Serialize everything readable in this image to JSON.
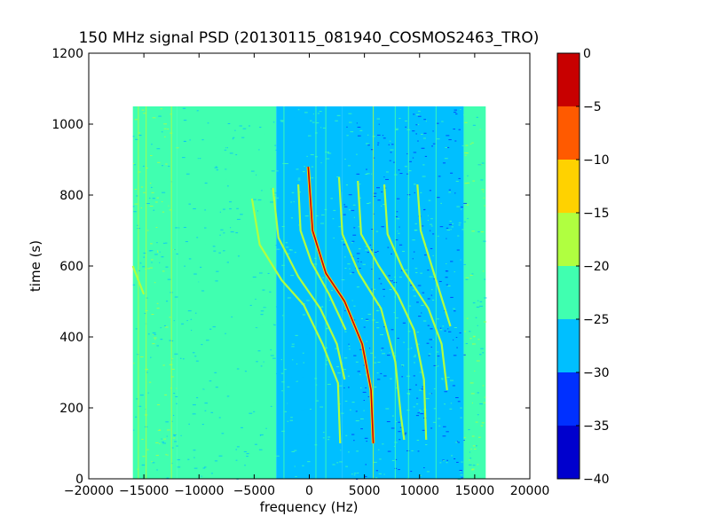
{
  "chart_data": {
    "type": "heatmap",
    "title": "150 MHz signal PSD (20130115_081940_COSMOS2463_TRO)",
    "xlabel": "frequency (Hz)",
    "ylabel": "time (s)",
    "xlim": [
      -20000,
      20000
    ],
    "ylim": [
      0,
      1200
    ],
    "xticks": [
      -20000,
      -15000,
      -10000,
      -5000,
      0,
      5000,
      10000,
      15000,
      20000
    ],
    "xtick_labels": [
      "−20000",
      "−15000",
      "−10000",
      "−5000",
      "0",
      "5000",
      "10000",
      "15000",
      "20000"
    ],
    "yticks": [
      0,
      200,
      400,
      600,
      800,
      1000,
      1200
    ],
    "ytick_labels": [
      "0",
      "200",
      "400",
      "600",
      "800",
      "1000",
      "1200"
    ],
    "data_extent": {
      "x": [
        -16000,
        16000
      ],
      "y": [
        0,
        1050
      ]
    },
    "colorbar": {
      "levels": [
        -40,
        -35,
        -30,
        -25,
        -20,
        -15,
        -10,
        -5,
        0
      ],
      "tick_labels": [
        "−40",
        "−35",
        "−30",
        "−25",
        "−20",
        "−15",
        "−10",
        "−5",
        "0"
      ],
      "colors": [
        "#0000cd",
        "#0030ff",
        "#00bfff",
        "#40ffb0",
        "#b0ff40",
        "#ffd200",
        "#ff5a00",
        "#c80000"
      ]
    },
    "background_bands": [
      {
        "x": [
          -16000,
          -12000
        ],
        "level": -22
      },
      {
        "x": [
          -12000,
          -3000
        ],
        "level": -25
      },
      {
        "x": [
          -3000,
          3000
        ],
        "level": -26
      },
      {
        "x": [
          3000,
          14000
        ],
        "level": -28
      },
      {
        "x": [
          14000,
          16000
        ],
        "level": -22
      }
    ],
    "traces": [
      {
        "level": -2,
        "points": [
          [
            -100,
            880
          ],
          [
            300,
            700
          ],
          [
            1500,
            580
          ],
          [
            3200,
            500
          ],
          [
            4800,
            380
          ],
          [
            5600,
            250
          ],
          [
            5800,
            100
          ]
        ]
      },
      {
        "level": -18,
        "points": [
          [
            -5200,
            790
          ],
          [
            -4500,
            660
          ],
          [
            -2500,
            560
          ],
          [
            -500,
            490
          ],
          [
            1200,
            380
          ],
          [
            2600,
            270
          ],
          [
            2800,
            100
          ]
        ]
      },
      {
        "level": -18,
        "points": [
          [
            -3300,
            820
          ],
          [
            -2800,
            680
          ],
          [
            -1000,
            570
          ],
          [
            1000,
            480
          ],
          [
            2500,
            380
          ],
          [
            3200,
            280
          ]
        ]
      },
      {
        "level": -18,
        "points": [
          [
            -1000,
            830
          ],
          [
            -800,
            700
          ],
          [
            200,
            610
          ],
          [
            1800,
            520
          ],
          [
            3300,
            420
          ]
        ]
      },
      {
        "level": -18,
        "points": [
          [
            2700,
            850
          ],
          [
            3000,
            690
          ],
          [
            4500,
            580
          ],
          [
            6500,
            480
          ],
          [
            7800,
            330
          ],
          [
            8300,
            180
          ],
          [
            8600,
            110
          ]
        ]
      },
      {
        "level": -18,
        "points": [
          [
            4400,
            840
          ],
          [
            4700,
            690
          ],
          [
            6300,
            600
          ],
          [
            8000,
            520
          ],
          [
            9500,
            420
          ],
          [
            10400,
            280
          ],
          [
            10600,
            110
          ]
        ]
      },
      {
        "level": -20,
        "points": [
          [
            6800,
            830
          ],
          [
            7100,
            690
          ],
          [
            8500,
            590
          ],
          [
            10800,
            480
          ],
          [
            12000,
            380
          ],
          [
            12500,
            250
          ]
        ]
      },
      {
        "level": -20,
        "points": [
          [
            9800,
            830
          ],
          [
            10100,
            700
          ],
          [
            11500,
            560
          ],
          [
            12800,
            430
          ]
        ]
      },
      {
        "level": -20,
        "points": [
          [
            -16000,
            600
          ],
          [
            -15500,
            560
          ],
          [
            -15000,
            520
          ]
        ]
      }
    ],
    "vertical_lines": [
      {
        "x": -15500,
        "level": -18
      },
      {
        "x": -14800,
        "level": -20
      },
      {
        "x": -12500,
        "level": -20
      },
      {
        "x": -10000,
        "level": -21
      },
      {
        "x": -7500,
        "level": -21
      },
      {
        "x": -4000,
        "level": -21
      },
      {
        "x": -2300,
        "level": -21
      },
      {
        "x": 600,
        "level": -21
      },
      {
        "x": 1500,
        "level": -21
      },
      {
        "x": 5800,
        "level": -20
      },
      {
        "x": 7800,
        "level": -21
      },
      {
        "x": 9000,
        "level": -21
      },
      {
        "x": 11500,
        "level": -21
      }
    ]
  }
}
